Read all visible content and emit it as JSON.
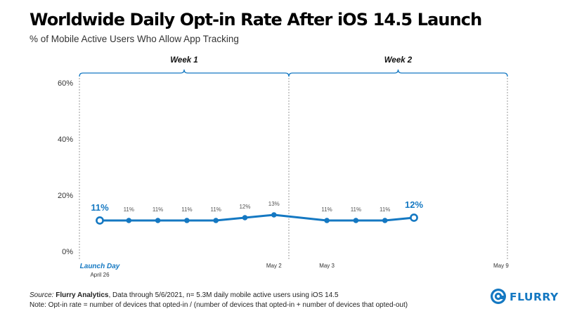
{
  "title": "Worldwide Daily Opt-in Rate After iOS 14.5 Launch",
  "subtitle": "% of Mobile Active Users Who Allow App Tracking",
  "chart_data": {
    "type": "line",
    "title": "Worldwide Daily Opt-in Rate After iOS 14.5 Launch",
    "subtitle": "% of Mobile Active Users Who Allow App Tracking",
    "ylim": [
      0,
      60
    ],
    "y_ticks": [
      0,
      20,
      40,
      60
    ],
    "y_tick_labels": [
      "0%",
      "20%",
      "40%",
      "60%"
    ],
    "grid": false,
    "color": "#1478c2",
    "points": [
      {
        "x": "April 26",
        "y": 11,
        "label": "11%"
      },
      {
        "x": "April 27",
        "y": 11,
        "label": "11%"
      },
      {
        "x": "April 28",
        "y": 11,
        "label": "11%"
      },
      {
        "x": "April 29",
        "y": 11,
        "label": "11%"
      },
      {
        "x": "April 30",
        "y": 11,
        "label": "11%"
      },
      {
        "x": "May 1",
        "y": 12,
        "label": "12%"
      },
      {
        "x": "May 2",
        "y": 13,
        "label": "13%"
      },
      {
        "x": "May 3",
        "y": 11,
        "label": "11%"
      },
      {
        "x": "May 4",
        "y": 11,
        "label": "11%"
      },
      {
        "x": "May 5",
        "y": 11,
        "label": "11%"
      },
      {
        "x": "May 6",
        "y": 12,
        "label": "12%"
      }
    ],
    "x_tick_labels": [
      {
        "x": "April 26",
        "text": "April 26",
        "caption": "Launch Day"
      },
      {
        "x": "May 2",
        "text": "May 2"
      },
      {
        "x": "May 3",
        "text": "May 3"
      },
      {
        "x": "May 9",
        "text": "May 9"
      }
    ],
    "weeks": [
      {
        "label": "Week 1",
        "start": "April 26",
        "end": "May 2"
      },
      {
        "label": "Week 2",
        "start": "May 3",
        "end": "May 9"
      }
    ],
    "highlighted_points": [
      "April 26",
      "May 6"
    ]
  },
  "footer": {
    "source_label": "Source:",
    "source_name": "Flurry Analytics",
    "source_text": ", Data through 5/6/2021, n= 5.3M daily mobile active users using iOS 14.5",
    "note": "Note: Opt-in rate = number of devices that opted-in / (number of devices that opted-in + number of devices that opted-out)"
  },
  "logo": {
    "text": "FLURRY",
    "color": "#1478c2"
  }
}
